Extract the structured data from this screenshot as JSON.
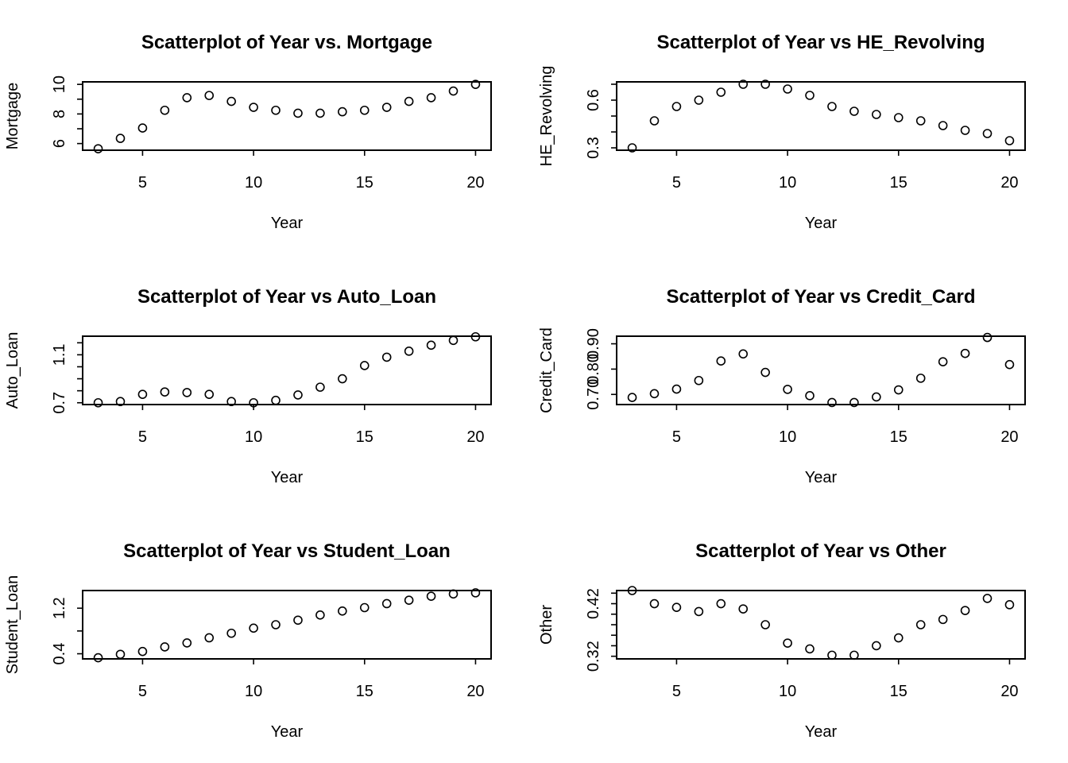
{
  "chart_data": [
    {
      "type": "scatter",
      "title": "Scatterplot of Year vs. Mortgage",
      "xlabel": "Year",
      "ylabel": "Mortgage",
      "xlim": [
        2.3,
        20.7
      ],
      "ylim": [
        5.55,
        10.17
      ],
      "x_ticks": [
        5,
        10,
        15,
        20
      ],
      "y_ticks": [
        6,
        7,
        8,
        9,
        10
      ],
      "y_tick_labels": [
        "6",
        "",
        "8",
        "",
        "10"
      ],
      "x": [
        3,
        4,
        5,
        6,
        7,
        8,
        9,
        10,
        11,
        12,
        13,
        14,
        15,
        16,
        17,
        18,
        19,
        20
      ],
      "y": [
        5.65,
        6.35,
        7.05,
        8.25,
        9.1,
        9.25,
        8.85,
        8.45,
        8.25,
        8.05,
        8.05,
        8.15,
        8.25,
        8.45,
        8.85,
        9.1,
        9.55,
        10.0
      ]
    },
    {
      "type": "scatter",
      "title": "Scatterplot of Year vs HE_Revolving",
      "xlabel": "Year",
      "ylabel": "HE_Revolving",
      "xlim": [
        2.3,
        20.7
      ],
      "ylim": [
        0.285,
        0.715
      ],
      "x_ticks": [
        5,
        10,
        15,
        20
      ],
      "y_ticks": [
        0.3,
        0.4,
        0.5,
        0.6,
        0.7
      ],
      "y_tick_labels": [
        "0.3",
        "",
        "",
        "0.6",
        ""
      ],
      "x": [
        3,
        4,
        5,
        6,
        7,
        8,
        9,
        10,
        11,
        12,
        13,
        14,
        15,
        16,
        17,
        18,
        19,
        20
      ],
      "y": [
        0.3,
        0.47,
        0.56,
        0.6,
        0.65,
        0.7,
        0.7,
        0.67,
        0.63,
        0.56,
        0.53,
        0.51,
        0.49,
        0.47,
        0.44,
        0.41,
        0.39,
        0.345
      ]
    },
    {
      "type": "scatter",
      "title": "Scatterplot of Year vs Auto_Loan",
      "xlabel": "Year",
      "ylabel": "Auto_Loan",
      "xlim": [
        2.3,
        20.7
      ],
      "ylim": [
        0.685,
        1.255
      ],
      "x_ticks": [
        5,
        10,
        15,
        20
      ],
      "y_ticks": [
        0.7,
        0.8,
        0.9,
        1.0,
        1.1,
        1.2
      ],
      "y_tick_labels": [
        "0.7",
        "",
        "",
        "",
        "1.1",
        ""
      ],
      "x": [
        3,
        4,
        5,
        6,
        7,
        8,
        9,
        10,
        11,
        12,
        13,
        14,
        15,
        16,
        17,
        18,
        19,
        20
      ],
      "y": [
        0.7,
        0.71,
        0.77,
        0.79,
        0.785,
        0.77,
        0.71,
        0.7,
        0.72,
        0.765,
        0.83,
        0.9,
        1.01,
        1.08,
        1.13,
        1.18,
        1.22,
        1.25
      ]
    },
    {
      "type": "scatter",
      "title": "Scatterplot of Year vs Credit_Card",
      "xlabel": "Year",
      "ylabel": "Credit_Card",
      "xlim": [
        2.3,
        20.7
      ],
      "ylim": [
        0.66,
        0.93
      ],
      "x_ticks": [
        5,
        10,
        15,
        20
      ],
      "y_ticks": [
        0.7,
        0.8,
        0.9
      ],
      "y_tick_labels": [
        "0.70",
        "0.80",
        "0.90"
      ],
      "x": [
        3,
        4,
        5,
        6,
        7,
        8,
        9,
        10,
        11,
        12,
        13,
        14,
        15,
        16,
        17,
        18,
        19,
        20
      ],
      "y": [
        0.688,
        0.703,
        0.721,
        0.755,
        0.832,
        0.86,
        0.787,
        0.72,
        0.695,
        0.668,
        0.668,
        0.69,
        0.718,
        0.764,
        0.829,
        0.862,
        0.925,
        0.818
      ]
    },
    {
      "type": "scatter",
      "title": "Scatterplot of Year vs Student_Loan",
      "xlabel": "Year",
      "ylabel": "Student_Loan",
      "xlim": [
        2.3,
        20.7
      ],
      "ylim": [
        0.31,
        1.51
      ],
      "x_ticks": [
        5,
        10,
        15,
        20
      ],
      "y_ticks": [
        0.4,
        0.8,
        1.2
      ],
      "y_tick_labels": [
        "0.4",
        "",
        "1.2"
      ],
      "x": [
        3,
        4,
        5,
        6,
        7,
        8,
        9,
        10,
        11,
        12,
        13,
        14,
        15,
        16,
        17,
        18,
        19,
        20
      ],
      "y": [
        0.33,
        0.39,
        0.44,
        0.52,
        0.59,
        0.68,
        0.76,
        0.85,
        0.91,
        0.99,
        1.08,
        1.15,
        1.21,
        1.28,
        1.34,
        1.41,
        1.45,
        1.47
      ]
    },
    {
      "type": "scatter",
      "title": "Scatterplot of Year vs Other",
      "xlabel": "Year",
      "ylabel": "Other",
      "xlim": [
        2.3,
        20.7
      ],
      "ylim": [
        0.315,
        0.445
      ],
      "x_ticks": [
        5,
        10,
        15,
        20
      ],
      "y_ticks": [
        0.32,
        0.34,
        0.36,
        0.38,
        0.4,
        0.42,
        0.44
      ],
      "y_tick_labels": [
        "0.32",
        "",
        "",
        "",
        "",
        "0.42",
        ""
      ],
      "x": [
        3,
        4,
        5,
        6,
        7,
        8,
        9,
        10,
        11,
        12,
        13,
        14,
        15,
        16,
        17,
        18,
        19,
        20
      ],
      "y": [
        0.445,
        0.42,
        0.413,
        0.405,
        0.42,
        0.41,
        0.38,
        0.345,
        0.334,
        0.322,
        0.322,
        0.34,
        0.355,
        0.38,
        0.39,
        0.407,
        0.43,
        0.418
      ]
    }
  ]
}
